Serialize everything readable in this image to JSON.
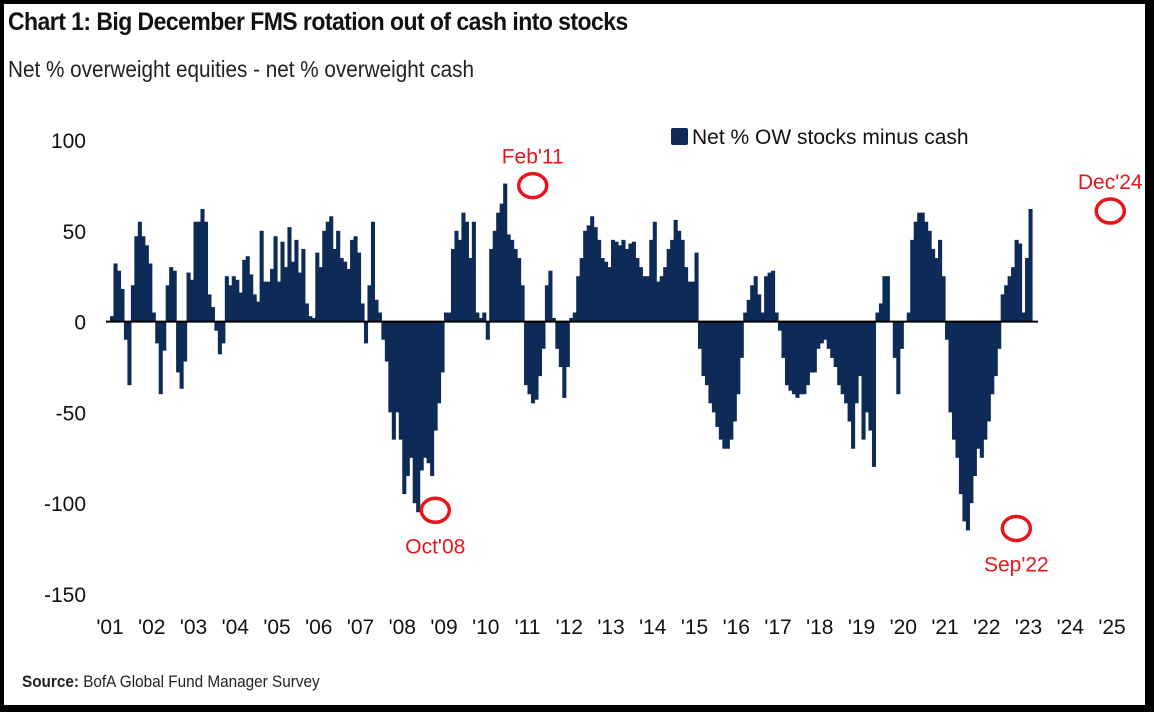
{
  "header": {
    "title": "Chart 1: Big December FMS rotation out of cash into stocks",
    "subtitle": "Net % overweight equities - net % overweight cash"
  },
  "footer": {
    "source_label": "Source:",
    "source_text": " BofA Global Fund Manager Survey"
  },
  "colors": {
    "bar": "#0d2b56",
    "annotation": "#e8151b",
    "zero_line": "#000000"
  },
  "chart_data": {
    "type": "bar",
    "title": "Chart 1: Big December FMS rotation out of cash into stocks",
    "subtitle": "Net % overweight equities - net % overweight cash",
    "xlabel": "",
    "ylabel": "",
    "ylim": [
      -150,
      100
    ],
    "yticks": [
      100,
      50,
      0,
      -50,
      -100,
      -150
    ],
    "ytick_labels": [
      "100",
      "50",
      "0",
      "-50",
      "-100",
      "-150"
    ],
    "xtick_labels": [
      "'01",
      "'02",
      "'03",
      "'04",
      "'05",
      "'06",
      "'07",
      "'08",
      "'09",
      "'10",
      "'11",
      "'12",
      "'13",
      "'14",
      "'15",
      "'16",
      "'17",
      "'18",
      "'19",
      "'20",
      "'21",
      "'22",
      "'23",
      "'24",
      "'25"
    ],
    "x_start": "2001-01",
    "frequency": "monthly",
    "grid": false,
    "legend": {
      "position": "top-right",
      "entries": [
        "Net % OW stocks minus cash"
      ]
    },
    "series": [
      {
        "name": "Net % OW stocks minus cash",
        "values": [
          3,
          32,
          28,
          18,
          -10,
          -35,
          20,
          47,
          55,
          47,
          42,
          32,
          5,
          -12,
          -40,
          -16,
          20,
          30,
          28,
          -28,
          -37,
          -22,
          27,
          23,
          55,
          55,
          62,
          55,
          15,
          8,
          -5,
          -18,
          -12,
          25,
          20,
          25,
          23,
          16,
          34,
          36,
          26,
          15,
          11,
          50,
          22,
          22,
          29,
          47,
          22,
          44,
          30,
          52,
          33,
          45,
          27,
          40,
          10,
          3,
          2,
          38,
          30,
          50,
          55,
          58,
          40,
          50,
          35,
          33,
          29,
          45,
          47,
          38,
          10,
          -12,
          20,
          55,
          12,
          5,
          -10,
          -22,
          -50,
          -65,
          -50,
          -65,
          -95,
          -85,
          -75,
          -100,
          -105,
          -82,
          -75,
          -78,
          -85,
          -60,
          -45,
          -28,
          5,
          5,
          40,
          50,
          45,
          60,
          55,
          35,
          55,
          5,
          2,
          5,
          -10,
          40,
          50,
          60,
          65,
          76,
          48,
          45,
          40,
          35,
          20,
          -35,
          -40,
          -45,
          -43,
          -30,
          -15,
          20,
          28,
          2,
          -15,
          -25,
          -42,
          -25,
          2,
          5,
          25,
          35,
          50,
          53,
          58,
          52,
          45,
          35,
          33,
          30,
          45,
          44,
          42,
          45,
          40,
          43,
          44,
          35,
          30,
          25,
          25,
          45,
          55,
          22,
          25,
          30,
          40,
          45,
          56,
          50,
          45,
          30,
          22,
          22,
          38,
          -15,
          -30,
          -35,
          -45,
          -50,
          -58,
          -65,
          -70,
          -70,
          -65,
          -55,
          -40,
          -20,
          5,
          12,
          20,
          25,
          15,
          5,
          25,
          27,
          28,
          5,
          -5,
          -20,
          -35,
          -38,
          -40,
          -42,
          -40,
          -40,
          -35,
          -28,
          -28,
          -15,
          -12,
          -10,
          -15,
          -20,
          -25,
          -35,
          -40,
          -45,
          -55,
          -70,
          -45,
          -30,
          -65,
          -50,
          -60,
          -80,
          5,
          10,
          25,
          25,
          0,
          -20,
          -40,
          -15,
          0,
          5,
          45,
          55,
          60,
          60,
          55,
          50,
          40,
          35,
          45,
          25,
          -10,
          -50,
          -65,
          -75,
          -95,
          -110,
          -115,
          -100,
          -85,
          -70,
          -75,
          -65,
          -55,
          -40,
          -30,
          -15,
          15,
          20,
          25,
          30,
          45,
          43,
          5,
          35,
          62
        ]
      }
    ],
    "annotations": [
      {
        "label": "Oct'08",
        "date": "2008-10",
        "value": -105
      },
      {
        "label": "Feb'11",
        "date": "2011-02",
        "value": 76
      },
      {
        "label": "Sep'22",
        "date": "2022-09",
        "value": -115
      },
      {
        "label": "Dec'24",
        "date": "2024-12",
        "value": 62
      }
    ]
  }
}
